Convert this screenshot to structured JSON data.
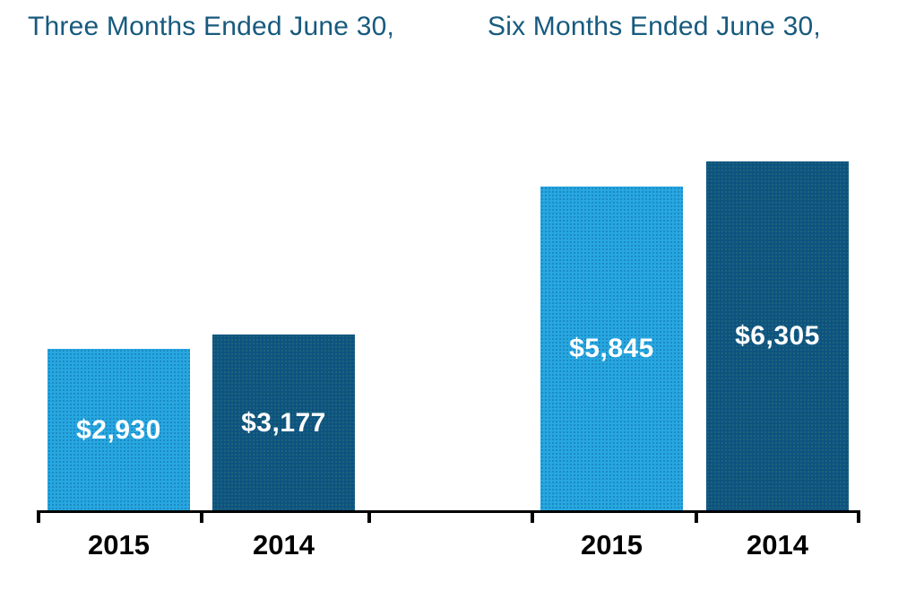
{
  "chart_data": {
    "type": "bar",
    "groups": [
      {
        "title": "Three Months Ended June 30,",
        "bars": [
          {
            "category": "2015",
            "value": 2930,
            "label": "$2,930",
            "color": "#27A7E0"
          },
          {
            "category": "2014",
            "value": 3177,
            "label": "$3,177",
            "color": "#0E5380"
          }
        ]
      },
      {
        "title": "Six Months Ended June 30,",
        "bars": [
          {
            "category": "2015",
            "value": 5845,
            "label": "$5,845",
            "color": "#27A7E0"
          },
          {
            "category": "2014",
            "value": 6305,
            "label": "$6,305",
            "color": "#0E5380"
          }
        ]
      }
    ],
    "series_colors": {
      "2015": "#27A7E0",
      "2014": "#0E5380"
    },
    "title_color": "#175A7E",
    "value_label_color": "#FFFFFF",
    "axis_color": "#000000",
    "xlabel_color": "#000000",
    "ylim": [
      0,
      6800
    ],
    "grid": false,
    "legend": false
  }
}
